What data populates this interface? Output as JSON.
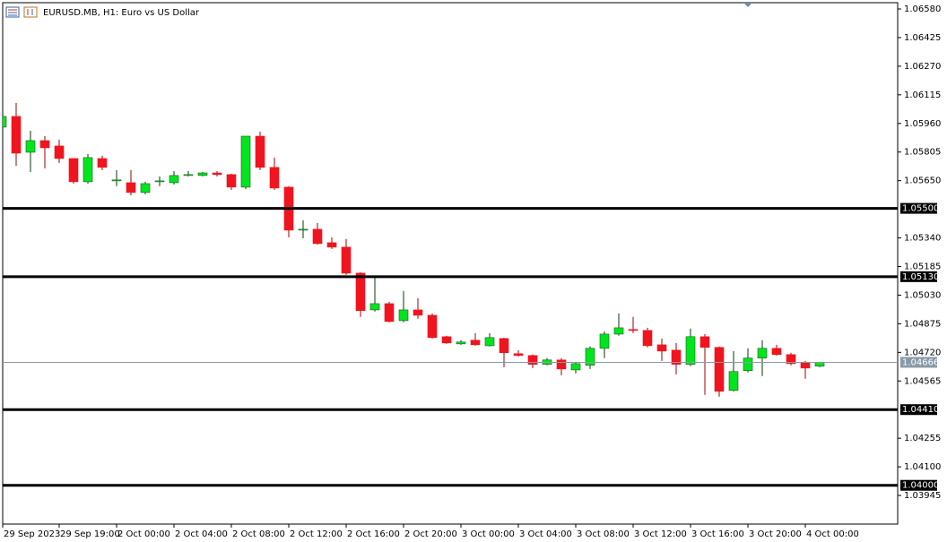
{
  "chart_data": {
    "type": "candlestick",
    "title": "EURUSD.MB, H1:  Euro vs US Dollar",
    "categories": [
      "29 Sep 2023",
      null,
      null,
      null,
      "29 Sep 19:00",
      null,
      null,
      null,
      "2 Oct 00:00",
      null,
      null,
      null,
      "2 Oct 04:00",
      null,
      null,
      null,
      "2 Oct 08:00",
      null,
      null,
      null,
      "2 Oct 12:00",
      null,
      null,
      null,
      "2 Oct 16:00",
      null,
      null,
      null,
      "2 Oct 20:00",
      null,
      null,
      null,
      "3 Oct 00:00",
      null,
      null,
      null,
      "3 Oct 04:00",
      null,
      null,
      null,
      "3 Oct 08:00",
      null,
      null,
      null,
      "3 Oct 12:00",
      null,
      null,
      null,
      "3 Oct 16:00",
      null,
      null,
      null,
      "3 Oct 20:00",
      null,
      null,
      null,
      "4 Oct 00:00",
      null
    ],
    "open": [
      1.0594,
      1.05998,
      1.05804,
      1.05867,
      1.05838,
      1.0577,
      1.05644,
      1.0577,
      1.05649,
      1.05639,
      1.05586,
      1.05644,
      1.05639,
      1.05678,
      1.05678,
      1.05692,
      1.05683,
      1.05615,
      1.05891,
      1.05722,
      1.05615,
      1.05382,
      1.05387,
      1.05314,
      1.0529,
      1.05149,
      1.0495,
      1.04984,
      1.04892,
      1.0495,
      1.04921,
      1.04805,
      1.04766,
      1.04786,
      1.04756,
      1.04795,
      1.04713,
      1.04703,
      1.04655,
      1.04679,
      1.04625,
      1.0465,
      1.04742,
      1.04819,
      1.04844,
      1.04839,
      1.04761,
      1.04732,
      1.04655,
      1.04805,
      1.04747,
      1.04514,
      1.04621,
      1.04689,
      1.04742,
      1.04708,
      1.04664,
      1.04645
    ],
    "high": [
      1.06008,
      1.06071,
      1.0592,
      1.05891,
      1.05872,
      1.0577,
      1.05794,
      1.05785,
      1.05707,
      1.05707,
      1.05644,
      1.05673,
      1.05702,
      1.05702,
      1.05697,
      1.05702,
      1.05688,
      1.05891,
      1.05916,
      1.05775,
      1.0562,
      1.05435,
      1.05421,
      1.05343,
      1.05334,
      1.05154,
      1.05125,
      1.04994,
      1.05052,
      1.05013,
      1.04931,
      1.0481,
      1.04786,
      1.04824,
      1.04824,
      1.048,
      1.04732,
      1.04708,
      1.04689,
      1.04689,
      1.04669,
      1.04752,
      1.04834,
      1.04931,
      1.04912,
      1.04853,
      1.04795,
      1.04771,
      1.04849,
      1.04819,
      1.04752,
      1.04727,
      1.04742,
      1.04786,
      1.04761,
      1.04718,
      1.04674,
      1.04669
    ],
    "low": [
      1.05925,
      1.05731,
      1.05697,
      1.05717,
      1.05746,
      1.05634,
      1.05634,
      1.05707,
      1.0562,
      1.05571,
      1.05576,
      1.0562,
      1.05629,
      1.05673,
      1.05673,
      1.05673,
      1.056,
      1.05605,
      1.05707,
      1.056,
      1.05343,
      1.05338,
      1.05304,
      1.0528,
      1.0514,
      1.04912,
      1.04941,
      1.04883,
      1.04883,
      1.04902,
      1.04795,
      1.04766,
      1.04761,
      1.04756,
      1.04752,
      1.0464,
      1.04698,
      1.04635,
      1.0465,
      1.04596,
      1.04606,
      1.0463,
      1.04689,
      1.0481,
      1.04824,
      1.04747,
      1.04674,
      1.04601,
      1.04645,
      1.0449,
      1.0448,
      1.04509,
      1.04611,
      1.04592,
      1.04703,
      1.0465,
      1.04577,
      1.0464
    ],
    "close": [
      1.05998,
      1.05799,
      1.05867,
      1.05828,
      1.0577,
      1.05644,
      1.05775,
      1.05722,
      1.05654,
      1.05586,
      1.05634,
      1.05649,
      1.05678,
      1.05683,
      1.05692,
      1.05683,
      1.05615,
      1.05891,
      1.05722,
      1.0561,
      1.05382,
      1.05387,
      1.05309,
      1.0529,
      1.05149,
      1.04946,
      1.04984,
      1.04887,
      1.0495,
      1.04921,
      1.048,
      1.04771,
      1.04776,
      1.04761,
      1.048,
      1.04718,
      1.04703,
      1.04655,
      1.04679,
      1.0463,
      1.04659,
      1.04742,
      1.04819,
      1.04853,
      1.04839,
      1.04756,
      1.04727,
      1.04655,
      1.04805,
      1.04747,
      1.04509,
      1.04616,
      1.04689,
      1.04742,
      1.04708,
      1.04659,
      1.04635,
      1.04666
    ],
    "up_color": "#00e61e",
    "down_color": "#f0141e",
    "ylim": [
      1.0379,
      1.06614
    ],
    "yticks": [
      {
        "value": 1.0658,
        "label": "1.06580"
      },
      1.06425,
      {
        "value": 1.0627,
        "label": "1.06270"
      },
      1.06115,
      {
        "value": 1.0596,
        "label": "1.05960"
      },
      1.05805,
      {
        "value": 1.0565,
        "label": "1.05650"
      },
      {
        "value": 1.0534,
        "label": "1.05340"
      },
      1.05185,
      {
        "value": 1.0503,
        "label": "1.05030"
      },
      1.04875,
      {
        "value": 1.0472,
        "label": "1.04720"
      },
      1.04565,
      1.04255,
      {
        "value": 1.041,
        "label": "1.04100"
      },
      1.03945
    ],
    "levels": [
      {
        "value": 1.055,
        "label": "1.05500"
      },
      {
        "value": 1.0513,
        "label": "1.05130"
      },
      {
        "value": 1.0441,
        "label": "1.04410"
      },
      {
        "value": 1.04,
        "label": "1.04000"
      }
    ],
    "current_price": 1.04666
  }
}
